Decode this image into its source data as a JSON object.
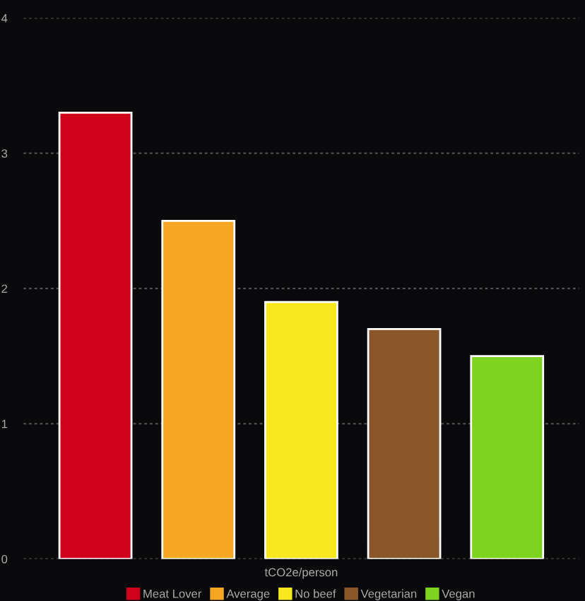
{
  "chart_data": {
    "type": "bar",
    "xlabel": "tCO2e/person",
    "categories": [
      null,
      null,
      null,
      null,
      null
    ],
    "series": [
      {
        "name": "Meat Lover",
        "color": "#d0021b",
        "values": [
          3.3,
          null,
          null,
          null,
          null
        ]
      },
      {
        "name": "Average",
        "color": "#f5a623",
        "values": [
          null,
          2.5,
          null,
          null,
          null
        ]
      },
      {
        "name": "No beef",
        "color": "#f8e71c",
        "values": [
          null,
          null,
          1.9,
          null,
          null
        ]
      },
      {
        "name": "Vegetarian",
        "color": "#8b572a",
        "values": [
          null,
          null,
          null,
          1.7,
          null
        ]
      },
      {
        "name": "Vegan",
        "color": "#7ed321",
        "values": [
          null,
          null,
          null,
          null,
          1.5
        ]
      }
    ],
    "ylim": [
      0,
      4
    ],
    "yticks": [
      0,
      1,
      2,
      3,
      4
    ],
    "grid": "y",
    "legend": "bottom"
  }
}
